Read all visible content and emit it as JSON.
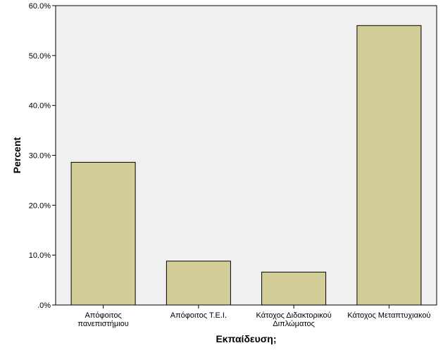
{
  "chart_data": {
    "type": "bar",
    "categories": [
      [
        "Απόφοιτος",
        "πανεπιστήμιου"
      ],
      [
        "Απόφοιτος Τ.Ε.Ι."
      ],
      [
        "Κάτοχος Διδακτορικού",
        "Διπλώματος"
      ],
      [
        "Κάτοχος Μεταπτυχιακού"
      ]
    ],
    "values": [
      28.6,
      8.8,
      6.6,
      56.0
    ],
    "xlabel": "Εκπαίδευση;",
    "ylabel": "Percent",
    "ylim": [
      0,
      60
    ],
    "yticks": [
      0,
      10,
      20,
      30,
      40,
      50,
      60
    ],
    "ytick_labels": [
      ".0%",
      "10.0%",
      "20.0%",
      "30.0%",
      "40.0%",
      "50.0%",
      "60.0%"
    ],
    "grid": false,
    "colors": {
      "plot_background": "#f0f0f0",
      "bar_fill": "#d3ce97",
      "bar_stroke": "#000000"
    }
  }
}
